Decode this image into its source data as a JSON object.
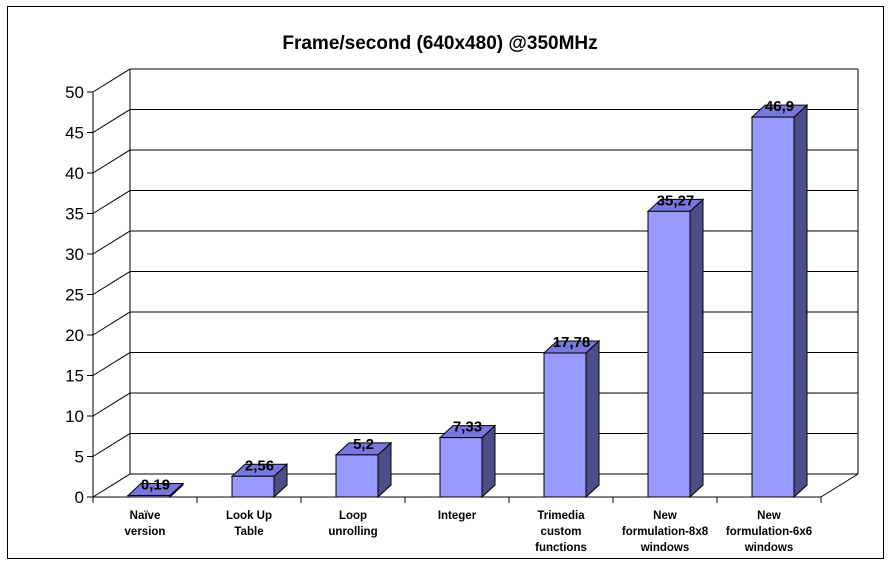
{
  "chart_data": {
    "type": "bar",
    "title": "Frame/second (640x480) @350MHz",
    "xlabel": "",
    "ylabel": "",
    "ylim": [
      0,
      50
    ],
    "yticks": [
      0,
      5,
      10,
      15,
      20,
      25,
      30,
      35,
      40,
      45,
      50
    ],
    "grid": true,
    "legend": "none",
    "categories": [
      [
        "Naïve",
        "version"
      ],
      [
        "Look Up",
        "Table"
      ],
      [
        "Loop",
        "unrolling"
      ],
      [
        "Integer"
      ],
      [
        "Trimedia",
        "custom",
        "functions"
      ],
      [
        "New",
        "formulation-8x8",
        "windows"
      ],
      [
        "New",
        "formulation-6x6",
        "windows"
      ]
    ],
    "values": [
      0.19,
      2.56,
      5.2,
      7.33,
      17.78,
      35.27,
      46.9
    ],
    "data_labels": [
      "0,19",
      "2,56",
      "5,2",
      "7,33",
      "17,78",
      "35,27",
      "46,9"
    ],
    "colors": {
      "bar_front": "#9999ff",
      "bar_side": "#4d4d8a",
      "bar_top": "#7777dd",
      "grid": "#000000"
    }
  }
}
